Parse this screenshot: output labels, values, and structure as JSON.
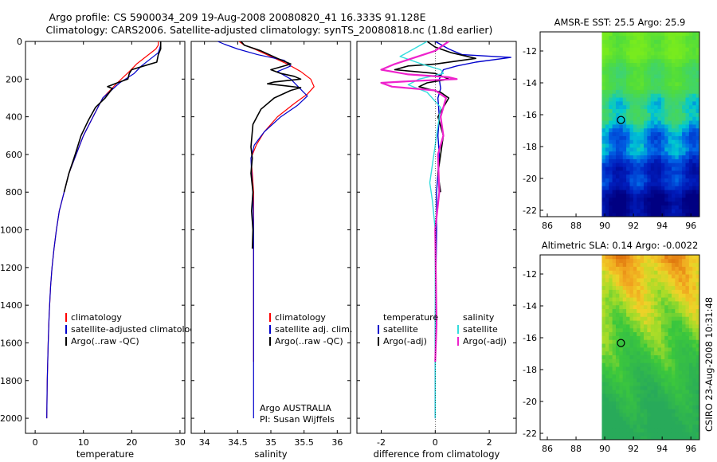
{
  "title_line1": "Argo profile: CS 5900034_209 19-Aug-2008 20080820_41 16.333S 91.128E",
  "title_line2": "Climatology: CARS2006. Satellite-adjusted climatology: synTS_20080818.nc (1.8d earlier)",
  "side_label": "CSIRO 23-Aug-2008 10:31:48",
  "colors": {
    "climatology": "#ff0000",
    "satellite": "#0000cc",
    "argo": "#000000",
    "satellite_salinity": "#33dddd",
    "argo_adj_salinity": "#ee22cc",
    "land": "#ffffff"
  },
  "chart_data": [
    {
      "type": "line",
      "id": "temperature",
      "xlabel": "temperature",
      "ylabel": "",
      "xlim": [
        -2,
        31
      ],
      "ylim": [
        0,
        2080
      ],
      "y_reversed": true,
      "xticks": [
        0,
        10,
        20,
        30
      ],
      "yticks": [
        0,
        200,
        400,
        600,
        800,
        1000,
        1200,
        1400,
        1600,
        1800,
        2000
      ],
      "legend": [
        "climatology",
        "satellite-adjusted climatology",
        "Argo(..raw -QC)"
      ],
      "series": [
        {
          "name": "climatology",
          "color": "#ff0000",
          "width": 1.2,
          "x": [
            25.5,
            25.5,
            25.0,
            21.0,
            19.5,
            17.0,
            14.0,
            12.0,
            10.0,
            8.5,
            7.0,
            6.0,
            5.0,
            4.4,
            3.9,
            3.5,
            3.2,
            2.9,
            2.7,
            2.5,
            2.4
          ],
          "y": [
            0,
            20,
            40,
            120,
            160,
            220,
            300,
            400,
            500,
            600,
            700,
            800,
            900,
            1000,
            1100,
            1200,
            1300,
            1450,
            1600,
            1800,
            2000
          ]
        },
        {
          "name": "satellite-adjusted climatology",
          "color": "#0000cc",
          "width": 1.2,
          "x": [
            26.0,
            26.0,
            25.5,
            22.0,
            20.5,
            17.5,
            14.0,
            12.0,
            10.0,
            8.5,
            7.0,
            6.0,
            5.0,
            4.4,
            3.9,
            3.5,
            3.2,
            2.9,
            2.7,
            2.5,
            2.4
          ],
          "y": [
            0,
            20,
            60,
            130,
            170,
            220,
            300,
            400,
            500,
            600,
            700,
            800,
            900,
            1000,
            1100,
            1200,
            1300,
            1450,
            1600,
            1800,
            2000
          ]
        },
        {
          "name": "Argo(..raw -QC)",
          "color": "#000000",
          "width": 1.6,
          "x": [
            26.0,
            26.0,
            25.5,
            25.2,
            22.5,
            20.0,
            19.5,
            19.2,
            17.0,
            15.0,
            16.0,
            14.5,
            12.5,
            11.0,
            9.5,
            8.3,
            7.0,
            6.0
          ],
          "y": [
            0,
            40,
            70,
            110,
            130,
            150,
            170,
            200,
            220,
            240,
            250,
            300,
            350,
            420,
            500,
            600,
            700,
            800
          ]
        }
      ]
    },
    {
      "type": "line",
      "id": "salinity",
      "xlabel": "salinity",
      "ylabel": "",
      "xlim": [
        33.8,
        36.2
      ],
      "ylim": [
        0,
        2080
      ],
      "y_reversed": true,
      "xticks": [
        34,
        34.5,
        35,
        35.5,
        36
      ],
      "yticks": [
        0,
        200,
        400,
        600,
        800,
        1000,
        1200,
        1400,
        1600,
        1800,
        2000
      ],
      "legend": [
        "climatology",
        "satellite adj. clim.",
        "Argo(..raw -QC)"
      ],
      "annotation": [
        "Argo AUSTRALIA",
        "PI: Susan Wijffels"
      ],
      "series": [
        {
          "name": "climatology",
          "color": "#ff0000",
          "width": 1.2,
          "x": [
            34.52,
            34.6,
            34.75,
            35.0,
            35.25,
            35.45,
            35.6,
            35.65,
            35.55,
            35.35,
            35.1,
            34.9,
            34.78,
            34.7,
            34.72,
            34.74,
            34.74,
            34.74,
            34.74,
            34.74
          ],
          "y": [
            0,
            20,
            40,
            80,
            120,
            160,
            200,
            240,
            280,
            330,
            400,
            480,
            550,
            620,
            700,
            800,
            1000,
            1200,
            1500,
            1700
          ]
        },
        {
          "name": "satellite adj. clim.",
          "color": "#0000cc",
          "width": 1.2,
          "x": [
            34.2,
            34.3,
            34.5,
            34.8,
            35.2,
            35.3,
            35.1,
            35.3,
            35.55,
            35.4,
            35.15,
            34.9,
            34.75,
            34.7,
            34.71,
            34.73,
            34.74,
            34.74,
            34.74,
            34.74
          ],
          "y": [
            0,
            15,
            40,
            70,
            100,
            130,
            160,
            200,
            290,
            340,
            400,
            480,
            550,
            620,
            700,
            800,
            1000,
            1200,
            1500,
            2000
          ]
        },
        {
          "name": "Argo(..raw -QC)",
          "color": "#000000",
          "width": 1.6,
          "x": [
            34.55,
            34.6,
            34.85,
            35.1,
            35.3,
            35.0,
            35.15,
            35.35,
            35.45,
            35.05,
            34.95,
            35.2,
            35.45,
            35.3,
            35.05,
            34.85,
            34.73,
            34.7,
            34.72,
            34.7,
            34.73,
            34.71,
            34.73,
            34.72
          ],
          "y": [
            0,
            20,
            50,
            90,
            120,
            150,
            170,
            185,
            200,
            215,
            225,
            235,
            245,
            260,
            300,
            360,
            440,
            560,
            620,
            700,
            800,
            900,
            1000,
            1100
          ]
        }
      ]
    },
    {
      "type": "line",
      "id": "difference",
      "xlabel": "difference from climatology",
      "ylabel": "",
      "xlim": [
        -2.9,
        3.0
      ],
      "ylim": [
        0,
        2080
      ],
      "y_reversed": true,
      "xticks": [
        -2,
        0,
        2
      ],
      "yticks": [
        0,
        200,
        400,
        600,
        800,
        1000,
        1200,
        1400,
        1600,
        1800,
        2000
      ],
      "legend_groups": [
        {
          "heading": "temperature",
          "items": [
            "satellite",
            "Argo(-adj)"
          ]
        },
        {
          "heading": "salinity",
          "items": [
            "satellite",
            "Argo(-adj)"
          ]
        }
      ],
      "series": [
        {
          "name": "temperature satellite",
          "color": "#0000cc",
          "width": 1.4,
          "x": [
            0.0,
            0.5,
            1.0,
            2.8,
            1.5,
            0.8,
            0.3,
            0.15,
            0.2,
            0.1,
            0.15,
            0.1,
            0.15,
            0.1,
            0.05,
            0.05,
            0.0,
            0.0
          ],
          "y": [
            0,
            40,
            70,
            85,
            110,
            130,
            150,
            200,
            250,
            300,
            400,
            500,
            600,
            700,
            800,
            1000,
            1500,
            2000
          ]
        },
        {
          "name": "temperature Argo(-adj)",
          "color": "#000000",
          "width": 1.6,
          "x": [
            -0.3,
            0.0,
            0.6,
            1.5,
            0.0,
            -1.0,
            -1.5,
            0.0,
            0.5,
            -0.3,
            -0.6,
            0.2,
            0.5,
            0.1,
            0.3,
            0.2,
            0.1,
            0.2
          ],
          "y": [
            0,
            30,
            60,
            90,
            120,
            130,
            150,
            170,
            200,
            220,
            240,
            270,
            300,
            400,
            500,
            600,
            700,
            800
          ]
        },
        {
          "name": "salinity satellite",
          "color": "#33dddd",
          "width": 1.4,
          "x": [
            -0.3,
            -0.8,
            -1.3,
            -0.5,
            0.2,
            0.3,
            -0.6,
            -1.0,
            -0.3,
            0.2,
            0.1,
            0.0,
            -0.1,
            -0.2,
            -0.1,
            0.0,
            0.0,
            0.0
          ],
          "y": [
            0,
            40,
            80,
            120,
            150,
            170,
            200,
            230,
            270,
            350,
            450,
            550,
            650,
            750,
            850,
            1000,
            1500,
            2000
          ]
        },
        {
          "name": "salinity Argo(-adj)",
          "color": "#ee22cc",
          "width": 2.2,
          "x": [
            0.5,
            0.0,
            -1.5,
            -2.0,
            -1.0,
            0.5,
            0.8,
            -0.8,
            -2.0,
            -1.6,
            0.0,
            0.4,
            0.2,
            0.3,
            0.1,
            0.15,
            0.0,
            0.05,
            0.0
          ],
          "y": [
            0,
            50,
            120,
            150,
            175,
            190,
            200,
            210,
            220,
            240,
            260,
            300,
            400,
            500,
            600,
            800,
            1000,
            1500,
            1700
          ]
        }
      ]
    },
    {
      "type": "heatmap",
      "id": "sst_map",
      "title": "AMSR-E SST: 25.5 Argo: 25.9",
      "xlim": [
        85.5,
        96.6
      ],
      "ylim": [
        -22.4,
        -10.8
      ],
      "xticks": [
        86,
        88,
        90,
        92,
        94,
        96
      ],
      "yticks": [
        -12,
        -14,
        -16,
        -18,
        -20,
        -22
      ],
      "data_lon_range": [
        89.8,
        96.6
      ],
      "marker": {
        "lon": 91.13,
        "lat": -16.33
      }
    },
    {
      "type": "heatmap",
      "id": "sla_map",
      "title": "Altimetric SLA: 0.14 Argo: -0.0022",
      "xlim": [
        85.5,
        96.6
      ],
      "ylim": [
        -22.4,
        -10.8
      ],
      "xticks": [
        86,
        88,
        90,
        92,
        94,
        96
      ],
      "yticks": [
        -12,
        -14,
        -16,
        -18,
        -20,
        -22
      ],
      "data_lon_range": [
        89.8,
        96.6
      ],
      "marker": {
        "lon": 91.13,
        "lat": -16.33
      }
    }
  ]
}
